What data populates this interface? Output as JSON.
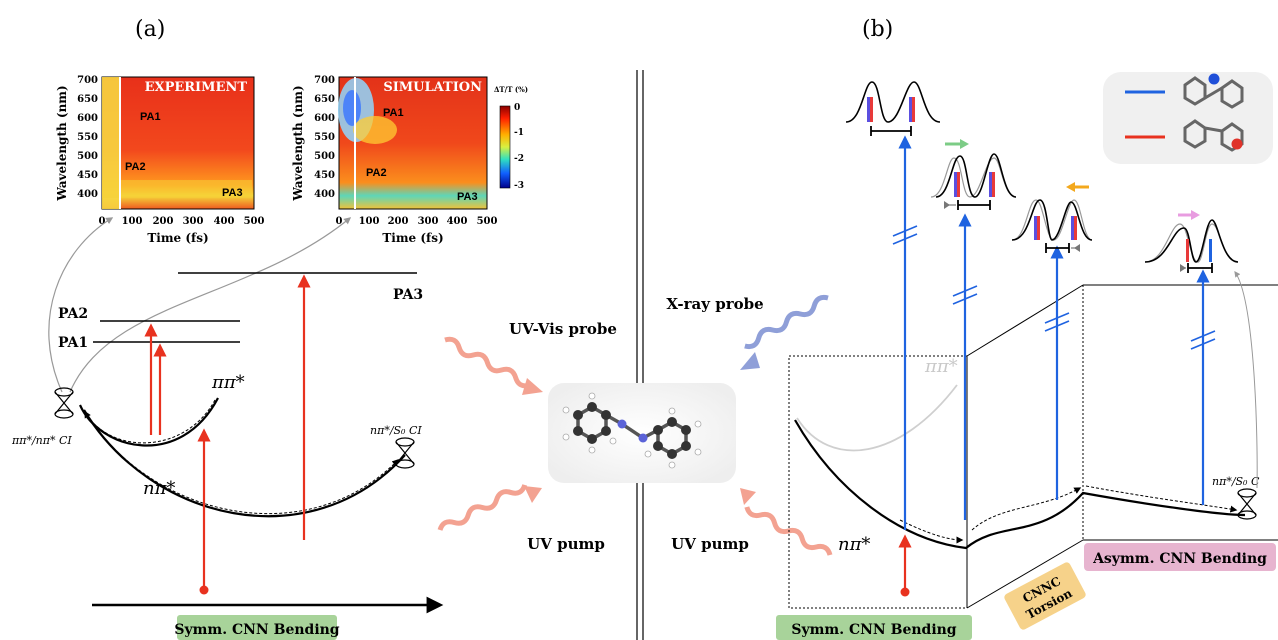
{
  "panel_a": {
    "label": "(a)",
    "exp_map": {
      "title": "EXPERIMENT",
      "ylabel": "Wavelength (nm)",
      "xlabel": "Time (fs)",
      "yticks": [
        "400",
        "450",
        "500",
        "550",
        "600",
        "650",
        "700"
      ],
      "xticks": [
        "0",
        "100",
        "200",
        "300",
        "400",
        "500"
      ],
      "bands": [
        "PA1",
        "PA2",
        "PA3"
      ]
    },
    "sim_map": {
      "title": "SIMULATION",
      "ylabel": "Wavelength (nm)",
      "xlabel": "Time (fs)",
      "yticks": [
        "400",
        "450",
        "500",
        "550",
        "600",
        "650",
        "700"
      ],
      "xticks": [
        "0",
        "100",
        "200",
        "300",
        "400",
        "500"
      ],
      "bands": [
        "PA1",
        "PA2",
        "PA3"
      ]
    },
    "colorbar": {
      "label": "ΔT/T (%)",
      "ticks": [
        "0",
        "-1",
        "-2",
        "-3"
      ]
    },
    "levels": {
      "pa1": "PA1",
      "pa2": "PA2",
      "pa3": "PA3"
    },
    "states": {
      "pipi": "ππ*",
      "npi": "nπ*",
      "ci_left": "ππ*/nπ* CI",
      "ci_right": "nπ*/S₀ CI"
    },
    "coord": "Symm. CNN Bending"
  },
  "center": {
    "uvvis": "UV-Vis probe",
    "uvpump_left": "UV pump",
    "xray": "X-ray probe",
    "uvpump_right": "UV pump"
  },
  "panel_b": {
    "label": "(b)",
    "states": {
      "pipi": "ππ*",
      "npi": "nπ*",
      "ci": "nπ*/S₀ C"
    },
    "coords": {
      "symm": "Symm. CNN Bending",
      "torsion_1": "CNNC",
      "torsion_2": "Torsion",
      "asymm": "Asymm. CNN Bending"
    }
  },
  "colors": {
    "red_arrow": "#e8321f",
    "blue_arrow": "#1f63e0",
    "green_bar": "#a8d39a",
    "orange_bar": "#f6d28a",
    "pink_bar": "#e7b4cf"
  }
}
